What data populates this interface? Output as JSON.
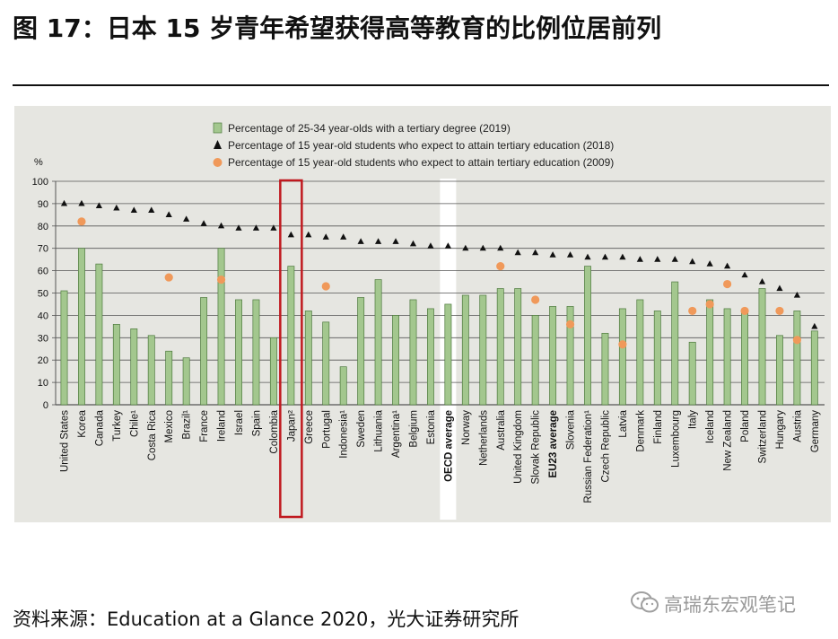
{
  "title": "图 17：日本 15 岁青年希望获得高等教育的比例位居前列",
  "source": "资料来源：Education at a Glance 2020，光大证券研究所",
  "watermark": "高瑞东宏观笔记",
  "colors": {
    "bar": "#a3c78e",
    "bar_stroke": "#4e7a3e",
    "triangle": "#111111",
    "circle": "#f0995a",
    "highlight_box": "#c0191f",
    "oecd_column": "#ffffff",
    "panel": "#e6e6e1",
    "grid": "#555555"
  },
  "chart_data": {
    "type": "bar",
    "ylabel": "%",
    "ylim": [
      0,
      100
    ],
    "yticks": [
      0,
      10,
      20,
      30,
      40,
      50,
      60,
      70,
      80,
      90,
      100
    ],
    "grid": true,
    "legend_position": "top-left",
    "highlight_category": "Japan²",
    "white_column_category": "OECD average",
    "bold_categories": [
      "OECD average",
      "EU23 average"
    ],
    "categories": [
      "United States",
      "Korea",
      "Canada",
      "Turkey",
      "Chile¹",
      "Costa Rica",
      "Mexico",
      "Brazil¹",
      "France",
      "Ireland",
      "Israel",
      "Spain",
      "Colombia",
      "Japan²",
      "Greece",
      "Portugal",
      "Indonesia¹",
      "Sweden",
      "Lithuania",
      "Argentina¹",
      "Belgium",
      "Estonia",
      "OECD average",
      "Norway",
      "Netherlands",
      "Australia",
      "United Kingdom",
      "Slovak Republic",
      "EU23 average",
      "Slovenia",
      "Russian Federation¹",
      "Czech Republic",
      "Latvia",
      "Denmark",
      "Finland",
      "Luxembourg",
      "Italy",
      "Iceland",
      "New Zealand",
      "Poland",
      "Switzerland",
      "Hungary",
      "Austria",
      "Germany"
    ],
    "series": [
      {
        "name": "Percentage of 25-34 year-olds with a tertiary degree (2019)",
        "kind": "bar",
        "values": [
          51,
          70,
          63,
          36,
          34,
          31,
          24,
          21,
          48,
          70,
          47,
          47,
          30,
          62,
          42,
          37,
          17,
          48,
          56,
          40,
          47,
          43,
          45,
          49,
          49,
          52,
          52,
          40,
          44,
          44,
          62,
          32,
          43,
          47,
          42,
          55,
          28,
          47,
          43,
          42,
          52,
          31,
          42,
          33
        ]
      },
      {
        "name": "Percentage of 15 year-old students who expect to attain tertiary education (2018)",
        "kind": "triangle",
        "values": [
          90,
          90,
          89,
          88,
          87,
          87,
          85,
          83,
          81,
          80,
          79,
          79,
          79,
          76,
          76,
          75,
          75,
          73,
          73,
          73,
          72,
          71,
          71,
          70,
          70,
          70,
          68,
          68,
          67,
          67,
          66,
          66,
          66,
          65,
          65,
          65,
          64,
          63,
          62,
          58,
          55,
          52,
          49,
          35
        ]
      },
      {
        "name": "Percentage of 15 year-old students who expect to attain tertiary education (2009)",
        "kind": "circle",
        "values": [
          null,
          82,
          null,
          null,
          null,
          null,
          57,
          null,
          null,
          56,
          null,
          null,
          null,
          null,
          null,
          53,
          null,
          null,
          null,
          null,
          null,
          null,
          null,
          null,
          null,
          62,
          null,
          47,
          null,
          36,
          null,
          null,
          27,
          null,
          null,
          null,
          42,
          45,
          54,
          42,
          null,
          42,
          29,
          null
        ]
      }
    ]
  }
}
